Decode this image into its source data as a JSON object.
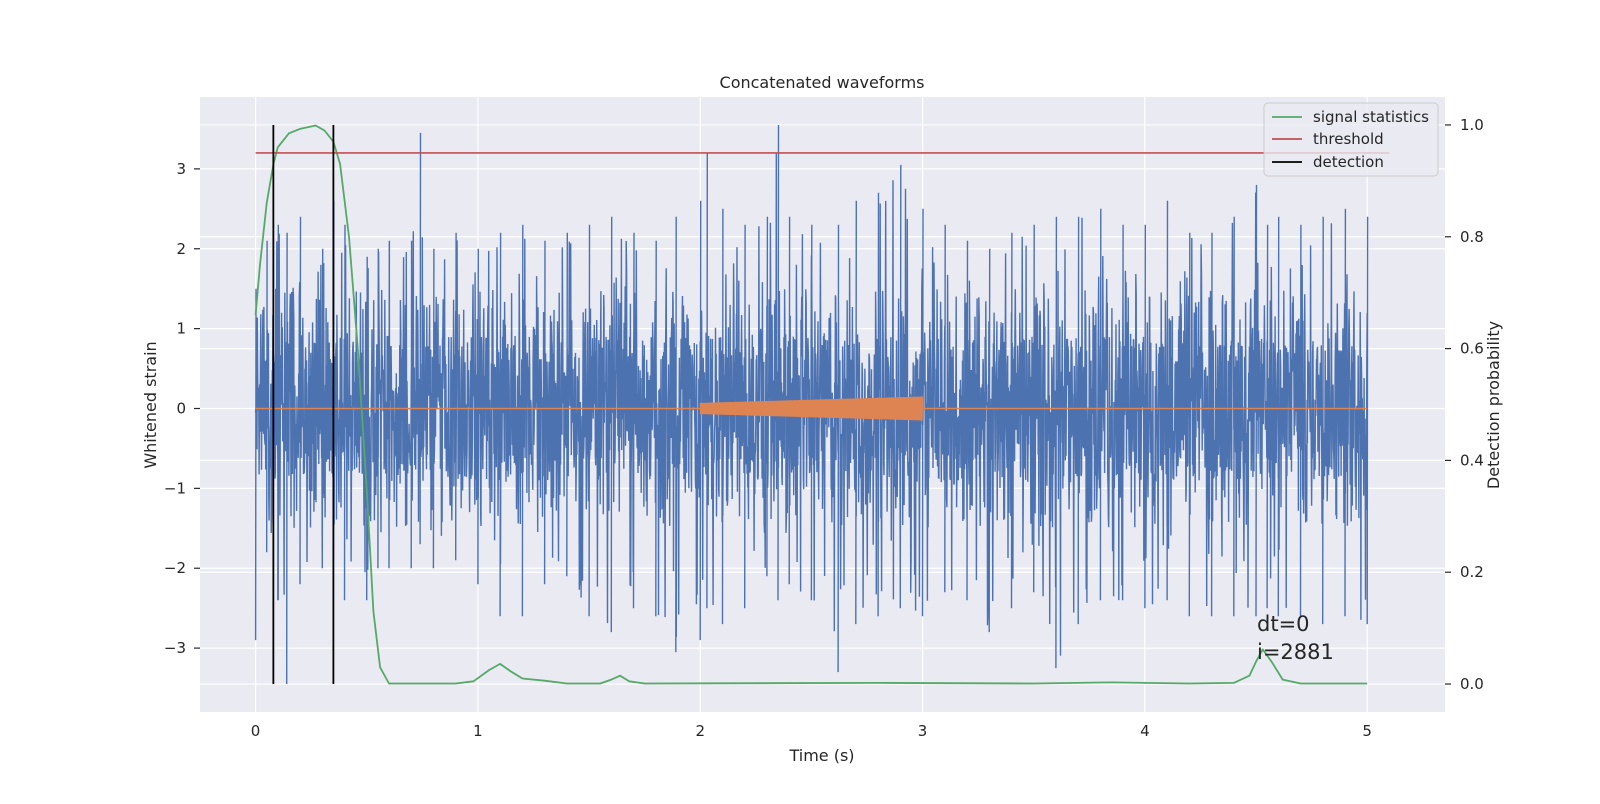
{
  "chart_data": {
    "type": "line",
    "title": "Concatenated waveforms",
    "xlabel": "Time (s)",
    "ylabel_left": "Whitened strain",
    "ylabel_right": "Detection probability",
    "xlim": [
      -0.25,
      5.35
    ],
    "ylim_left": [
      -3.8,
      3.9
    ],
    "ylim_right": [
      -0.05,
      1.05
    ],
    "xticks": [
      0,
      1,
      2,
      3,
      4,
      5
    ],
    "xtick_labels": [
      "0",
      "1",
      "2",
      "3",
      "4",
      "5"
    ],
    "yticks_left": [
      3,
      2,
      1,
      0,
      -1,
      -2,
      -3
    ],
    "ytick_labels_left": [
      "3",
      "2",
      "1",
      "0",
      "−1",
      "−2",
      "−3"
    ],
    "yticks_right": [
      1.0,
      0.8,
      0.6,
      0.4,
      0.2,
      0.0
    ],
    "ytick_labels_right": [
      "1.0",
      "0.8",
      "0.6",
      "0.4",
      "0.2",
      "0.0"
    ],
    "grid": true,
    "legend_position": "top-right",
    "legend": [
      "signal statistics",
      "threshold",
      "detection"
    ],
    "annotation_lines": [
      "dt=0",
      "i=2881"
    ],
    "colors": {
      "background": "#eaeaf2",
      "grid": "#ffffff",
      "strain": "#4c72b0",
      "injected": "#dd8452",
      "signal_statistics": "#55a868",
      "threshold": "#c44e52",
      "detection": "#000000"
    },
    "series": [
      {
        "name": "strain",
        "axis": "left",
        "description_range": [
          0,
          5
        ],
        "envelope": [
          [
            0.0,
            -2.9,
            1.5
          ],
          [
            0.05,
            -1.8,
            2.1
          ],
          [
            0.1,
            -2.4,
            2.3
          ],
          [
            0.14,
            -3.45,
            2.2
          ],
          [
            0.2,
            -2.2,
            2.4
          ],
          [
            0.3,
            -2.0,
            2.0
          ],
          [
            0.35,
            -1.9,
            2.6
          ],
          [
            0.4,
            -2.4,
            2.3
          ],
          [
            0.5,
            -2.4,
            1.9
          ],
          [
            0.55,
            -2.0,
            2.0
          ],
          [
            0.6,
            -2.0,
            2.1
          ],
          [
            0.7,
            -2.0,
            2.1
          ],
          [
            0.74,
            -1.7,
            3.45
          ],
          [
            0.8,
            -2.0,
            2.0
          ],
          [
            0.9,
            -1.9,
            2.2
          ],
          [
            1.0,
            -2.2,
            2.0
          ],
          [
            1.1,
            -2.6,
            2.2
          ],
          [
            1.2,
            -2.6,
            2.3
          ],
          [
            1.3,
            -2.2,
            2.1
          ],
          [
            1.4,
            -2.1,
            2.2
          ],
          [
            1.5,
            -2.6,
            2.3
          ],
          [
            1.6,
            -2.8,
            2.4
          ],
          [
            1.7,
            -2.5,
            2.2
          ],
          [
            1.8,
            -2.6,
            2.1
          ],
          [
            1.89,
            -3.05,
            2.4
          ],
          [
            2.0,
            -2.9,
            2.6
          ],
          [
            2.03,
            -2.5,
            3.2
          ],
          [
            2.1,
            -2.7,
            2.5
          ],
          [
            2.2,
            -2.5,
            2.3
          ],
          [
            2.3,
            -2.1,
            2.4
          ],
          [
            2.35,
            -2.4,
            3.55
          ],
          [
            2.4,
            -2.2,
            2.4
          ],
          [
            2.5,
            -2.4,
            2.3
          ],
          [
            2.62,
            -3.3,
            2.3
          ],
          [
            2.7,
            -2.7,
            2.6
          ],
          [
            2.8,
            -2.6,
            2.7
          ],
          [
            2.9,
            -2.5,
            3.05
          ],
          [
            3.0,
            -2.6,
            2.5
          ],
          [
            3.1,
            -2.3,
            2.3
          ],
          [
            3.2,
            -2.4,
            2.1
          ],
          [
            3.3,
            -2.8,
            2.0
          ],
          [
            3.4,
            -2.5,
            2.2
          ],
          [
            3.5,
            -2.3,
            2.3
          ],
          [
            3.6,
            -3.25,
            2.4
          ],
          [
            3.7,
            -2.7,
            2.4
          ],
          [
            3.8,
            -2.4,
            2.5
          ],
          [
            3.9,
            -2.4,
            2.3
          ],
          [
            4.0,
            -2.5,
            2.3
          ],
          [
            4.1,
            -2.4,
            2.6
          ],
          [
            4.2,
            -2.6,
            2.2
          ],
          [
            4.3,
            -2.6,
            2.2
          ],
          [
            4.4,
            -2.6,
            2.4
          ],
          [
            4.5,
            -2.6,
            2.8
          ],
          [
            4.55,
            -2.5,
            2.3
          ],
          [
            4.6,
            -2.6,
            2.4
          ],
          [
            4.7,
            -2.6,
            2.3
          ],
          [
            4.8,
            -2.7,
            2.4
          ],
          [
            4.9,
            -2.6,
            2.5
          ],
          [
            5.0,
            -2.7,
            2.4
          ]
        ]
      },
      {
        "name": "injected",
        "axis": "left",
        "points": [
          [
            0,
            0
          ],
          [
            2.0,
            0
          ],
          [
            2.0,
            0.07
          ],
          [
            3.0,
            0.15
          ],
          [
            3.0,
            0
          ],
          [
            5.0,
            0
          ]
        ]
      },
      {
        "name": "signal statistics",
        "axis": "right",
        "points": [
          [
            0.0,
            0.66
          ],
          [
            0.02,
            0.75
          ],
          [
            0.05,
            0.86
          ],
          [
            0.08,
            0.93
          ],
          [
            0.1,
            0.96
          ],
          [
            0.15,
            0.985
          ],
          [
            0.2,
            0.993
          ],
          [
            0.27,
            0.999
          ],
          [
            0.31,
            0.99
          ],
          [
            0.35,
            0.97
          ],
          [
            0.38,
            0.93
          ],
          [
            0.42,
            0.8
          ],
          [
            0.46,
            0.6
          ],
          [
            0.5,
            0.35
          ],
          [
            0.53,
            0.13
          ],
          [
            0.56,
            0.03
          ],
          [
            0.6,
            0.001
          ],
          [
            0.9,
            0.001
          ],
          [
            0.98,
            0.005
          ],
          [
            1.05,
            0.025
          ],
          [
            1.1,
            0.036
          ],
          [
            1.15,
            0.022
          ],
          [
            1.2,
            0.01
          ],
          [
            1.3,
            0.006
          ],
          [
            1.4,
            0.001
          ],
          [
            1.55,
            0.001
          ],
          [
            1.6,
            0.008
          ],
          [
            1.64,
            0.015
          ],
          [
            1.68,
            0.005
          ],
          [
            1.75,
            0.001
          ],
          [
            2.8,
            0.002
          ],
          [
            3.5,
            0.001
          ],
          [
            3.85,
            0.003
          ],
          [
            4.2,
            0.001
          ],
          [
            4.4,
            0.002
          ],
          [
            4.47,
            0.015
          ],
          [
            4.5,
            0.04
          ],
          [
            4.53,
            0.062
          ],
          [
            4.57,
            0.04
          ],
          [
            4.62,
            0.008
          ],
          [
            4.7,
            0.001
          ],
          [
            5.0,
            0.001
          ]
        ]
      },
      {
        "name": "threshold",
        "axis": "right",
        "points": [
          [
            0,
            0.95
          ],
          [
            5.1,
            0.95
          ]
        ]
      }
    ],
    "detections": [
      0.08,
      0.35
    ]
  }
}
